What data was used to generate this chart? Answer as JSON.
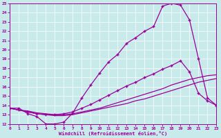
{
  "bg_color": "#c8eaea",
  "line_color": "#990099",
  "grid_color": "#aacccc",
  "xlim": [
    0,
    23
  ],
  "ylim": [
    12,
    25
  ],
  "xticks": [
    0,
    1,
    2,
    3,
    4,
    5,
    6,
    7,
    8,
    9,
    10,
    11,
    12,
    13,
    14,
    15,
    16,
    17,
    18,
    19,
    20,
    21,
    22,
    23
  ],
  "yticks": [
    12,
    13,
    14,
    15,
    16,
    17,
    18,
    19,
    20,
    21,
    22,
    23,
    24,
    25
  ],
  "xlabel": "Windchill (Refroidissement éolien,°C)",
  "curve1_x": [
    0,
    1,
    2,
    3,
    4,
    5,
    6,
    7,
    8,
    9,
    10,
    11,
    12,
    13,
    14,
    15,
    16,
    17,
    18,
    19,
    20,
    21,
    22,
    23
  ],
  "curve1_y": [
    13.7,
    13.7,
    13.1,
    12.8,
    12.0,
    12.0,
    12.2,
    13.2,
    14.8,
    16.2,
    17.5,
    18.7,
    19.5,
    20.7,
    21.3,
    22.0,
    22.5,
    24.7,
    25.0,
    24.8,
    23.2,
    19.0,
    14.8,
    14.0
  ],
  "curve2_x": [
    0,
    1,
    2,
    3,
    4,
    5,
    6,
    7,
    8,
    9,
    10,
    11,
    12,
    13,
    14,
    15,
    16,
    17,
    18,
    19,
    20,
    21,
    22,
    23
  ],
  "curve2_y": [
    13.7,
    13.5,
    13.4,
    13.2,
    13.1,
    13.0,
    13.0,
    13.1,
    13.3,
    13.5,
    13.7,
    14.0,
    14.3,
    14.6,
    14.9,
    15.2,
    15.5,
    15.8,
    16.2,
    16.5,
    16.8,
    17.0,
    17.2,
    17.3
  ],
  "curve3_x": [
    0,
    1,
    2,
    3,
    4,
    5,
    6,
    7,
    8,
    9,
    10,
    11,
    12,
    13,
    14,
    15,
    16,
    17,
    18,
    19,
    20,
    21,
    22,
    23
  ],
  "curve3_y": [
    13.7,
    13.5,
    13.3,
    13.1,
    13.0,
    13.0,
    13.1,
    13.3,
    13.7,
    14.1,
    14.6,
    15.1,
    15.6,
    16.1,
    16.5,
    17.0,
    17.4,
    17.9,
    18.3,
    18.8,
    17.6,
    15.3,
    14.5,
    14.0
  ],
  "curve4_x": [
    0,
    1,
    2,
    3,
    4,
    5,
    6,
    7,
    8,
    9,
    10,
    11,
    12,
    13,
    14,
    15,
    16,
    17,
    18,
    19,
    20,
    21,
    22,
    23
  ],
  "curve4_y": [
    13.7,
    13.5,
    13.3,
    13.1,
    13.0,
    12.9,
    12.9,
    13.0,
    13.2,
    13.4,
    13.6,
    13.8,
    14.0,
    14.2,
    14.5,
    14.7,
    15.0,
    15.3,
    15.6,
    15.9,
    16.2,
    16.5,
    16.7,
    16.9
  ]
}
